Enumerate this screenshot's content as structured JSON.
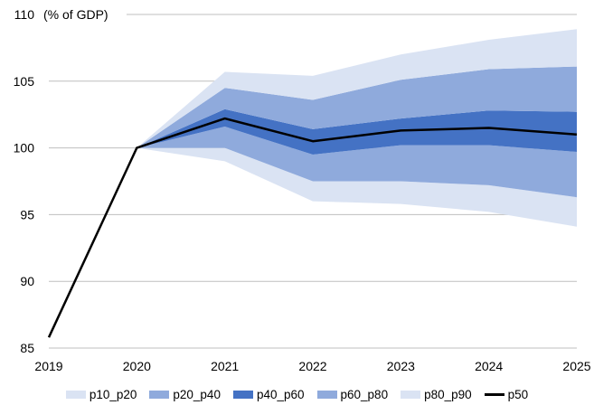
{
  "chart_data": {
    "type": "area",
    "title": "",
    "ylabel": "(% of GDP)",
    "xlabel": "",
    "x": [
      "2019",
      "2020",
      "2021",
      "2022",
      "2023",
      "2024",
      "2025"
    ],
    "ylim": [
      85,
      110
    ],
    "yticks": [
      85,
      90,
      95,
      100,
      105,
      110
    ],
    "grid": "horizontal",
    "legend_position": "bottom",
    "p50": [
      85.8,
      100.0,
      102.2,
      100.5,
      101.3,
      101.5,
      101.0
    ],
    "series": [
      {
        "name": "p10_p20",
        "color": "#dae3f3",
        "lower": [
          null,
          100.0,
          99.0,
          96.0,
          95.8,
          95.2,
          94.1
        ],
        "upper": [
          null,
          100.0,
          100.0,
          97.5,
          97.5,
          97.2,
          96.3
        ]
      },
      {
        "name": "p20_p40",
        "color": "#8faadc",
        "lower": [
          null,
          100.0,
          100.0,
          97.5,
          97.5,
          97.2,
          96.3
        ],
        "upper": [
          null,
          100.0,
          101.6,
          99.5,
          100.2,
          100.2,
          99.7
        ]
      },
      {
        "name": "p40_p60",
        "color": "#4472c4",
        "lower": [
          null,
          100.0,
          101.6,
          99.5,
          100.2,
          100.2,
          99.7
        ],
        "upper": [
          null,
          100.0,
          102.9,
          101.4,
          102.2,
          102.8,
          102.7
        ]
      },
      {
        "name": "p60_p80",
        "color": "#8faadc",
        "lower": [
          null,
          100.0,
          102.9,
          101.4,
          102.2,
          102.8,
          102.7
        ],
        "upper": [
          null,
          100.0,
          104.5,
          103.6,
          105.1,
          105.9,
          106.1
        ]
      },
      {
        "name": "p80_p90",
        "color": "#dae3f3",
        "lower": [
          null,
          100.0,
          104.5,
          103.6,
          105.1,
          105.9,
          106.1
        ],
        "upper": [
          null,
          100.0,
          105.7,
          105.4,
          107.0,
          108.1,
          108.9
        ]
      }
    ],
    "line": {
      "name": "p50",
      "color": "#000000"
    }
  }
}
